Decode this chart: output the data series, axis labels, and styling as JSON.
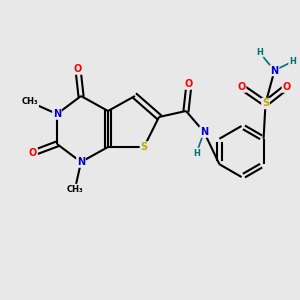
{
  "background_color": "#e8e8e8",
  "bond_color": "#000000",
  "bond_width": 1.5,
  "atom_colors": {
    "C": "#000000",
    "N": "#0000cc",
    "O": "#ff0000",
    "S": "#bbaa00",
    "H": "#007070"
  },
  "font_size": 7.0,
  "small_font_size": 6.0
}
